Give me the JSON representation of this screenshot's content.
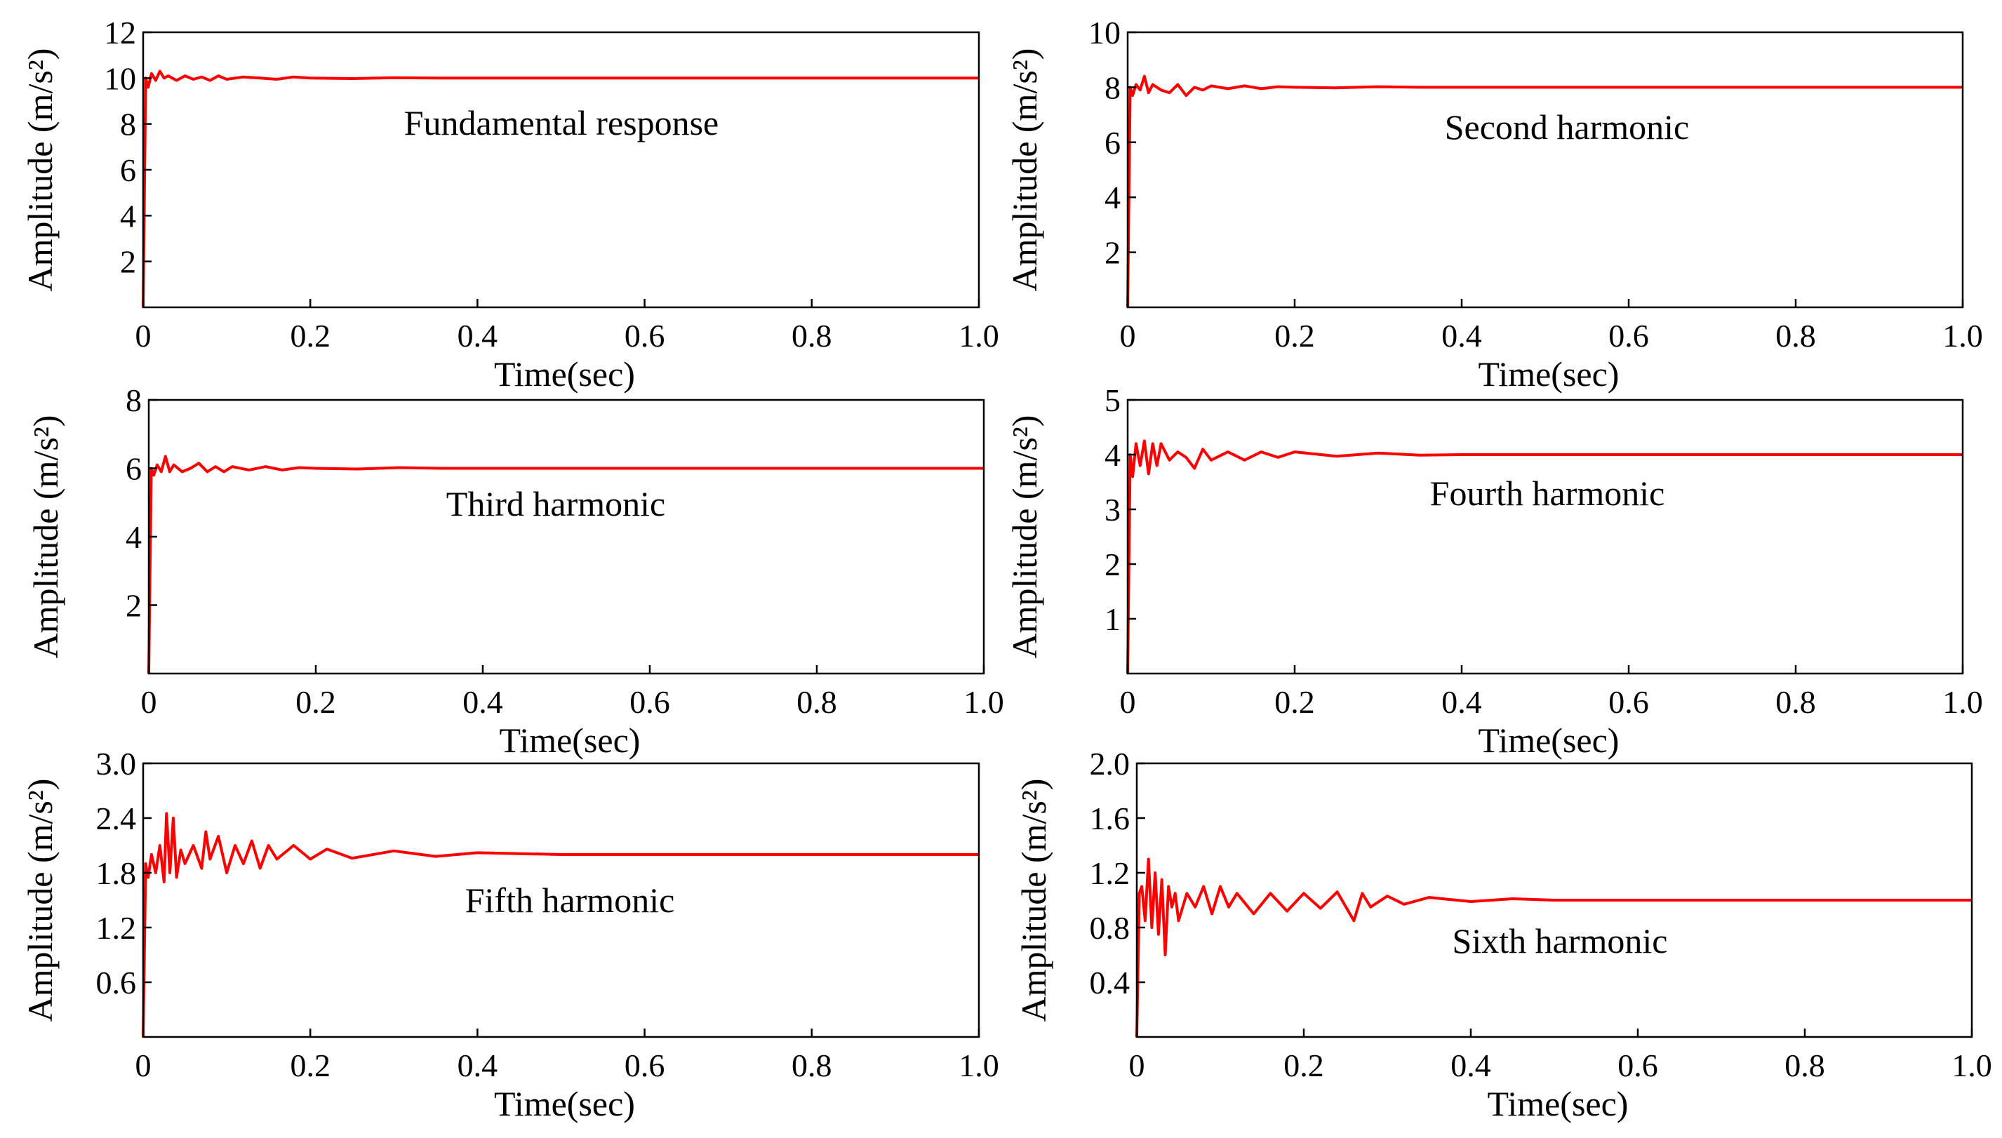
{
  "chart_data": [
    {
      "type": "line",
      "title": "",
      "annotation": "Fundamental response",
      "xlabel": "Time(sec)",
      "ylabel": "Amplitude (m/s²)",
      "xlim": [
        0,
        1.0
      ],
      "ylim": [
        0,
        12
      ],
      "xticks": [
        "0",
        "0.2",
        "0.4",
        "0.6",
        "0.8",
        "1.0"
      ],
      "xtick_values": [
        0,
        0.2,
        0.4,
        0.6,
        0.8,
        1.0
      ],
      "yticks": [
        "2",
        "4",
        "6",
        "8",
        "10",
        "12"
      ],
      "ytick_values": [
        2,
        4,
        6,
        8,
        10,
        12
      ],
      "series": [
        {
          "name": "Fundamental",
          "color": "#ff0000",
          "x": [
            0,
            0.003,
            0.006,
            0.01,
            0.015,
            0.02,
            0.025,
            0.03,
            0.04,
            0.05,
            0.06,
            0.07,
            0.08,
            0.09,
            0.1,
            0.12,
            0.14,
            0.16,
            0.18,
            0.2,
            0.25,
            0.3,
            0.35,
            0.4,
            0.5,
            0.6,
            0.7,
            0.8,
            0.9,
            1.0
          ],
          "y": [
            0,
            10.0,
            9.6,
            10.2,
            9.9,
            10.3,
            10.0,
            10.1,
            9.9,
            10.1,
            9.95,
            10.05,
            9.9,
            10.1,
            9.95,
            10.05,
            10.0,
            9.95,
            10.05,
            10.0,
            9.98,
            10.02,
            10.0,
            10.0,
            10.0,
            10.0,
            10.0,
            10.0,
            10.0,
            10.0
          ]
        }
      ]
    },
    {
      "type": "line",
      "title": "",
      "annotation": "Second harmonic",
      "xlabel": "Time(sec)",
      "ylabel": "Amplitude (m/s²)",
      "xlim": [
        0,
        1.0
      ],
      "ylim": [
        0,
        10
      ],
      "xticks": [
        "0",
        "0.2",
        "0.4",
        "0.6",
        "0.8",
        "1.0"
      ],
      "xtick_values": [
        0,
        0.2,
        0.4,
        0.6,
        0.8,
        1.0
      ],
      "yticks": [
        "2",
        "4",
        "6",
        "8",
        "10"
      ],
      "ytick_values": [
        2,
        4,
        6,
        8,
        10
      ],
      "series": [
        {
          "name": "Second",
          "color": "#ff0000",
          "x": [
            0,
            0.003,
            0.006,
            0.01,
            0.015,
            0.02,
            0.025,
            0.03,
            0.04,
            0.05,
            0.06,
            0.07,
            0.08,
            0.09,
            0.1,
            0.12,
            0.14,
            0.16,
            0.18,
            0.2,
            0.25,
            0.3,
            0.35,
            0.4,
            0.5,
            0.6,
            0.7,
            0.8,
            0.9,
            1.0
          ],
          "y": [
            0,
            8.0,
            7.7,
            8.1,
            7.9,
            8.4,
            7.8,
            8.1,
            7.9,
            7.8,
            8.1,
            7.7,
            8.0,
            7.9,
            8.05,
            7.95,
            8.05,
            7.95,
            8.02,
            8.0,
            7.98,
            8.02,
            8.0,
            8.0,
            8.0,
            8.0,
            8.0,
            8.0,
            8.0,
            8.0
          ]
        }
      ]
    },
    {
      "type": "line",
      "title": "",
      "annotation": "Third harmonic",
      "xlabel": "Time(sec)",
      "ylabel": "Amplitude (m/s²)",
      "xlim": [
        0,
        1.0
      ],
      "ylim": [
        0,
        8
      ],
      "xticks": [
        "0",
        "0.2",
        "0.4",
        "0.6",
        "0.8",
        "1.0"
      ],
      "xtick_values": [
        0,
        0.2,
        0.4,
        0.6,
        0.8,
        1.0
      ],
      "yticks": [
        "2",
        "4",
        "6",
        "8"
      ],
      "ytick_values": [
        2,
        4,
        6,
        8
      ],
      "series": [
        {
          "name": "Third",
          "color": "#ff0000",
          "x": [
            0,
            0.003,
            0.006,
            0.01,
            0.015,
            0.02,
            0.025,
            0.03,
            0.04,
            0.05,
            0.06,
            0.07,
            0.08,
            0.09,
            0.1,
            0.12,
            0.14,
            0.16,
            0.18,
            0.2,
            0.25,
            0.3,
            0.35,
            0.4,
            0.5,
            0.6,
            0.7,
            0.8,
            0.9,
            1.0
          ],
          "y": [
            0,
            6.0,
            5.8,
            6.1,
            5.9,
            6.35,
            5.9,
            6.1,
            5.9,
            6.0,
            6.15,
            5.9,
            6.05,
            5.9,
            6.05,
            5.95,
            6.05,
            5.95,
            6.02,
            6.0,
            5.98,
            6.02,
            6.0,
            6.0,
            6.0,
            6.0,
            6.0,
            6.0,
            6.0,
            6.0
          ]
        }
      ]
    },
    {
      "type": "line",
      "title": "",
      "annotation": "Fourth harmonic",
      "xlabel": "Time(sec)",
      "ylabel": "Amplitude (m/s²)",
      "xlim": [
        0,
        1.0
      ],
      "ylim": [
        0,
        5
      ],
      "xticks": [
        "0",
        "0.2",
        "0.4",
        "0.6",
        "0.8",
        "1.0"
      ],
      "xtick_values": [
        0,
        0.2,
        0.4,
        0.6,
        0.8,
        1.0
      ],
      "yticks": [
        "1",
        "2",
        "3",
        "4",
        "5"
      ],
      "ytick_values": [
        1,
        2,
        3,
        4,
        5
      ],
      "series": [
        {
          "name": "Fourth",
          "color": "#ff0000",
          "x": [
            0,
            0.003,
            0.006,
            0.01,
            0.015,
            0.02,
            0.025,
            0.03,
            0.035,
            0.04,
            0.05,
            0.06,
            0.07,
            0.08,
            0.09,
            0.1,
            0.12,
            0.14,
            0.16,
            0.18,
            0.2,
            0.25,
            0.3,
            0.35,
            0.4,
            0.5,
            0.6,
            0.7,
            0.8,
            0.9,
            1.0
          ],
          "y": [
            0,
            4.0,
            3.6,
            4.2,
            3.8,
            4.25,
            3.65,
            4.2,
            3.8,
            4.2,
            3.9,
            4.05,
            3.95,
            3.75,
            4.1,
            3.9,
            4.05,
            3.9,
            4.05,
            3.95,
            4.05,
            3.97,
            4.03,
            3.99,
            4.0,
            4.0,
            4.0,
            4.0,
            4.0,
            4.0,
            4.0
          ]
        }
      ]
    },
    {
      "type": "line",
      "title": "",
      "annotation": "Fifth harmonic",
      "xlabel": "Time(sec)",
      "ylabel": "Amplitude (m/s²)",
      "xlim": [
        0,
        1.0
      ],
      "ylim": [
        0,
        3.0
      ],
      "xticks": [
        "0",
        "0.2",
        "0.4",
        "0.6",
        "0.8",
        "1.0"
      ],
      "xtick_values": [
        0,
        0.2,
        0.4,
        0.6,
        0.8,
        1.0
      ],
      "yticks": [
        "0.6",
        "1.2",
        "1.8",
        "2.4",
        "3.0"
      ],
      "ytick_values": [
        0.6,
        1.2,
        1.8,
        2.4,
        3.0
      ],
      "series": [
        {
          "name": "Fifth",
          "color": "#ff0000",
          "x": [
            0,
            0.003,
            0.006,
            0.01,
            0.015,
            0.02,
            0.025,
            0.028,
            0.032,
            0.036,
            0.04,
            0.045,
            0.05,
            0.06,
            0.07,
            0.075,
            0.08,
            0.09,
            0.1,
            0.11,
            0.12,
            0.13,
            0.14,
            0.15,
            0.16,
            0.18,
            0.2,
            0.22,
            0.25,
            0.3,
            0.35,
            0.4,
            0.5,
            0.6,
            0.7,
            0.8,
            0.9,
            1.0
          ],
          "y": [
            0,
            1.9,
            1.75,
            2.0,
            1.8,
            2.1,
            1.7,
            2.45,
            1.8,
            2.4,
            1.75,
            2.05,
            1.9,
            2.1,
            1.85,
            2.25,
            1.95,
            2.2,
            1.8,
            2.1,
            1.9,
            2.15,
            1.85,
            2.1,
            1.95,
            2.1,
            1.95,
            2.06,
            1.96,
            2.04,
            1.98,
            2.02,
            2.0,
            2.0,
            2.0,
            2.0,
            2.0,
            2.0
          ]
        }
      ]
    },
    {
      "type": "line",
      "title": "",
      "annotation": "Sixth harmonic",
      "xlabel": "Time(sec)",
      "ylabel": "Amplitude (m/s²)",
      "xlim": [
        0,
        1.0
      ],
      "ylim": [
        0,
        2.0
      ],
      "xticks": [
        "0",
        "0.2",
        "0.4",
        "0.6",
        "0.8",
        "1.0"
      ],
      "xtick_values": [
        0,
        0.2,
        0.4,
        0.6,
        0.8,
        1.0
      ],
      "yticks": [
        "0.4",
        "0.8",
        "1.2",
        "1.6",
        "2.0"
      ],
      "ytick_values": [
        0.4,
        0.8,
        1.2,
        1.6,
        2.0
      ],
      "series": [
        {
          "name": "Sixth",
          "color": "#ff0000",
          "x": [
            0,
            0.003,
            0.006,
            0.01,
            0.014,
            0.018,
            0.022,
            0.026,
            0.03,
            0.034,
            0.038,
            0.042,
            0.046,
            0.05,
            0.06,
            0.07,
            0.08,
            0.09,
            0.1,
            0.11,
            0.12,
            0.14,
            0.16,
            0.18,
            0.2,
            0.22,
            0.24,
            0.26,
            0.27,
            0.28,
            0.3,
            0.32,
            0.35,
            0.4,
            0.45,
            0.5,
            0.6,
            0.7,
            0.8,
            0.9,
            1.0
          ],
          "y": [
            0,
            1.05,
            1.1,
            0.85,
            1.3,
            0.8,
            1.2,
            0.75,
            1.15,
            0.6,
            1.1,
            0.95,
            1.05,
            0.85,
            1.05,
            0.95,
            1.1,
            0.9,
            1.1,
            0.95,
            1.05,
            0.9,
            1.05,
            0.92,
            1.05,
            0.94,
            1.06,
            0.85,
            1.05,
            0.95,
            1.03,
            0.97,
            1.02,
            0.99,
            1.01,
            1.0,
            1.0,
            1.0,
            1.0,
            1.0,
            1.0
          ]
        }
      ]
    }
  ]
}
